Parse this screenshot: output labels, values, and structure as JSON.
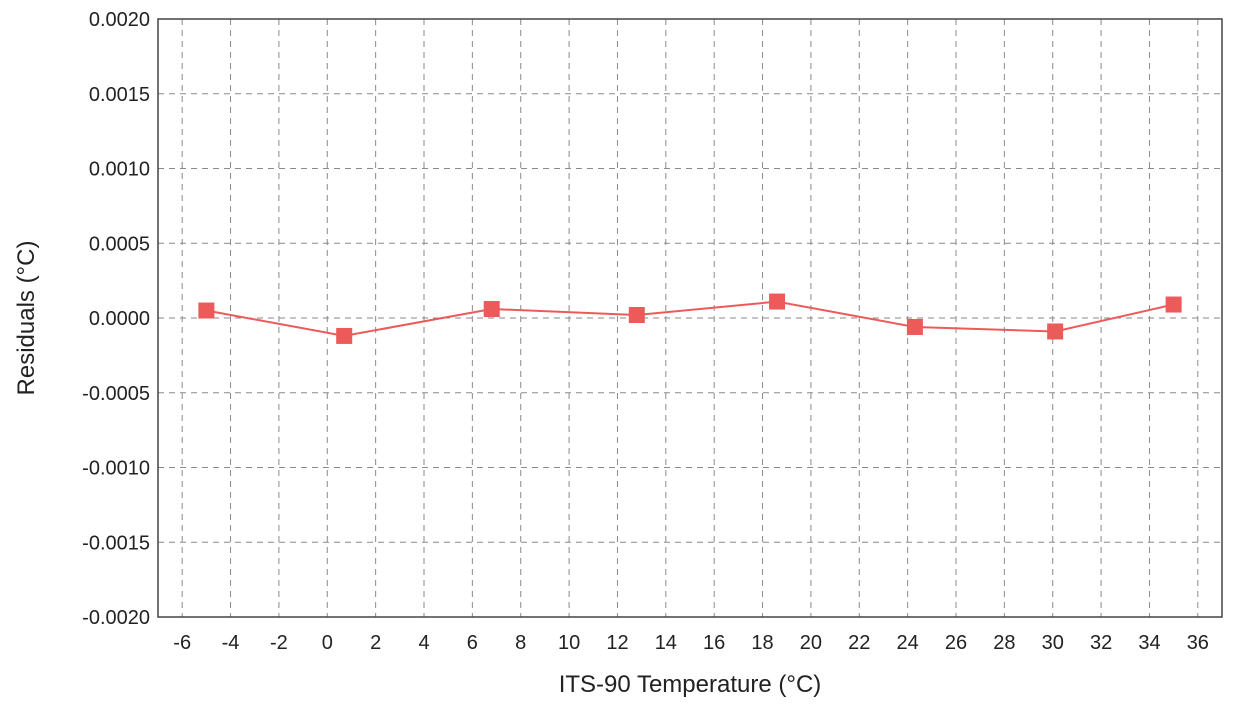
{
  "chart_data": {
    "type": "line",
    "title": "",
    "xlabel": "ITS-90 Temperature (°C)",
    "ylabel": "Residuals (°C)",
    "xlim": [
      -7,
      37
    ],
    "ylim": [
      -0.002,
      0.002
    ],
    "x_ticks": [
      -6,
      -4,
      -2,
      0,
      2,
      4,
      6,
      8,
      10,
      12,
      14,
      16,
      18,
      20,
      22,
      24,
      26,
      28,
      30,
      32,
      34,
      36
    ],
    "y_ticks": [
      0.002,
      0.0015,
      0.001,
      0.0005,
      0.0,
      -0.0005,
      -0.001,
      -0.0015,
      -0.002
    ],
    "x_tick_labels": [
      "-6",
      "-4",
      "-2",
      "0",
      "2",
      "4",
      "6",
      "8",
      "10",
      "12",
      "14",
      "16",
      "18",
      "20",
      "22",
      "24",
      "26",
      "28",
      "30",
      "32",
      "34",
      "36"
    ],
    "y_tick_labels": [
      "0.0020",
      "0.0015",
      "0.0010",
      "0.0005",
      "0.0000",
      "-0.0005",
      "-0.0010",
      "-0.0015",
      "-0.0020"
    ],
    "grid": true,
    "grid_style": "dashed",
    "series": [
      {
        "marker": "square",
        "color": "#ec5a5a",
        "x": [
          -5.0,
          0.7,
          6.8,
          12.8,
          18.6,
          24.3,
          30.1,
          35.0
        ],
        "y": [
          5e-05,
          -0.00012,
          6e-05,
          2e-05,
          0.00011,
          -6e-05,
          -9e-05,
          9e-05
        ]
      }
    ]
  }
}
